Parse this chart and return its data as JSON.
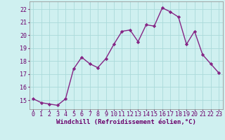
{
  "x": [
    0,
    1,
    2,
    3,
    4,
    5,
    6,
    7,
    8,
    9,
    10,
    11,
    12,
    13,
    14,
    15,
    16,
    17,
    18,
    19,
    20,
    21,
    22,
    23
  ],
  "y": [
    15.1,
    14.8,
    14.7,
    14.6,
    15.1,
    17.4,
    18.3,
    17.8,
    17.5,
    18.2,
    19.3,
    20.3,
    20.4,
    19.5,
    20.8,
    20.7,
    22.1,
    21.8,
    21.4,
    19.3,
    20.3,
    18.5,
    17.8,
    17.1
  ],
  "line_color": "#852585",
  "marker": "D",
  "marker_size": 2.2,
  "line_width": 1.0,
  "bg_color": "#cff0f0",
  "grid_color": "#aadada",
  "xlabel": "Windchill (Refroidissement éolien,°C)",
  "xlabel_color": "#6B006B",
  "xlabel_fontsize": 6.5,
  "ylabel_ticks": [
    15,
    16,
    17,
    18,
    19,
    20,
    21,
    22
  ],
  "xlim": [
    -0.5,
    23.5
  ],
  "ylim": [
    14.3,
    22.6
  ],
  "tick_fontsize": 6.0,
  "tick_color": "#6B006B",
  "spine_color": "#999999"
}
